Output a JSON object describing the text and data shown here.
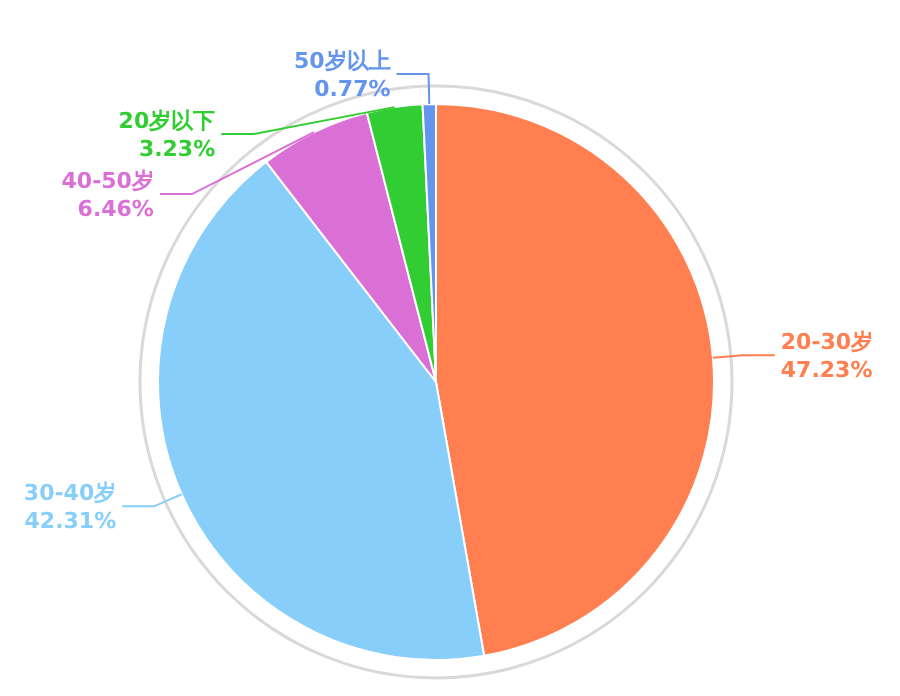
{
  "chart_data": {
    "type": "pie",
    "categories": [
      "20-30岁",
      "30-40岁",
      "40-50岁",
      "20岁以下",
      "50岁以上"
    ],
    "values": [
      47.23,
      42.31,
      6.46,
      3.23,
      0.77
    ],
    "value_labels": [
      "47.23%",
      "42.31%",
      "6.46%",
      "3.23%",
      "0.77%"
    ],
    "colors": [
      "#ff7f50",
      "#87cefa",
      "#da70d6",
      "#32cd32",
      "#6495ed"
    ]
  }
}
